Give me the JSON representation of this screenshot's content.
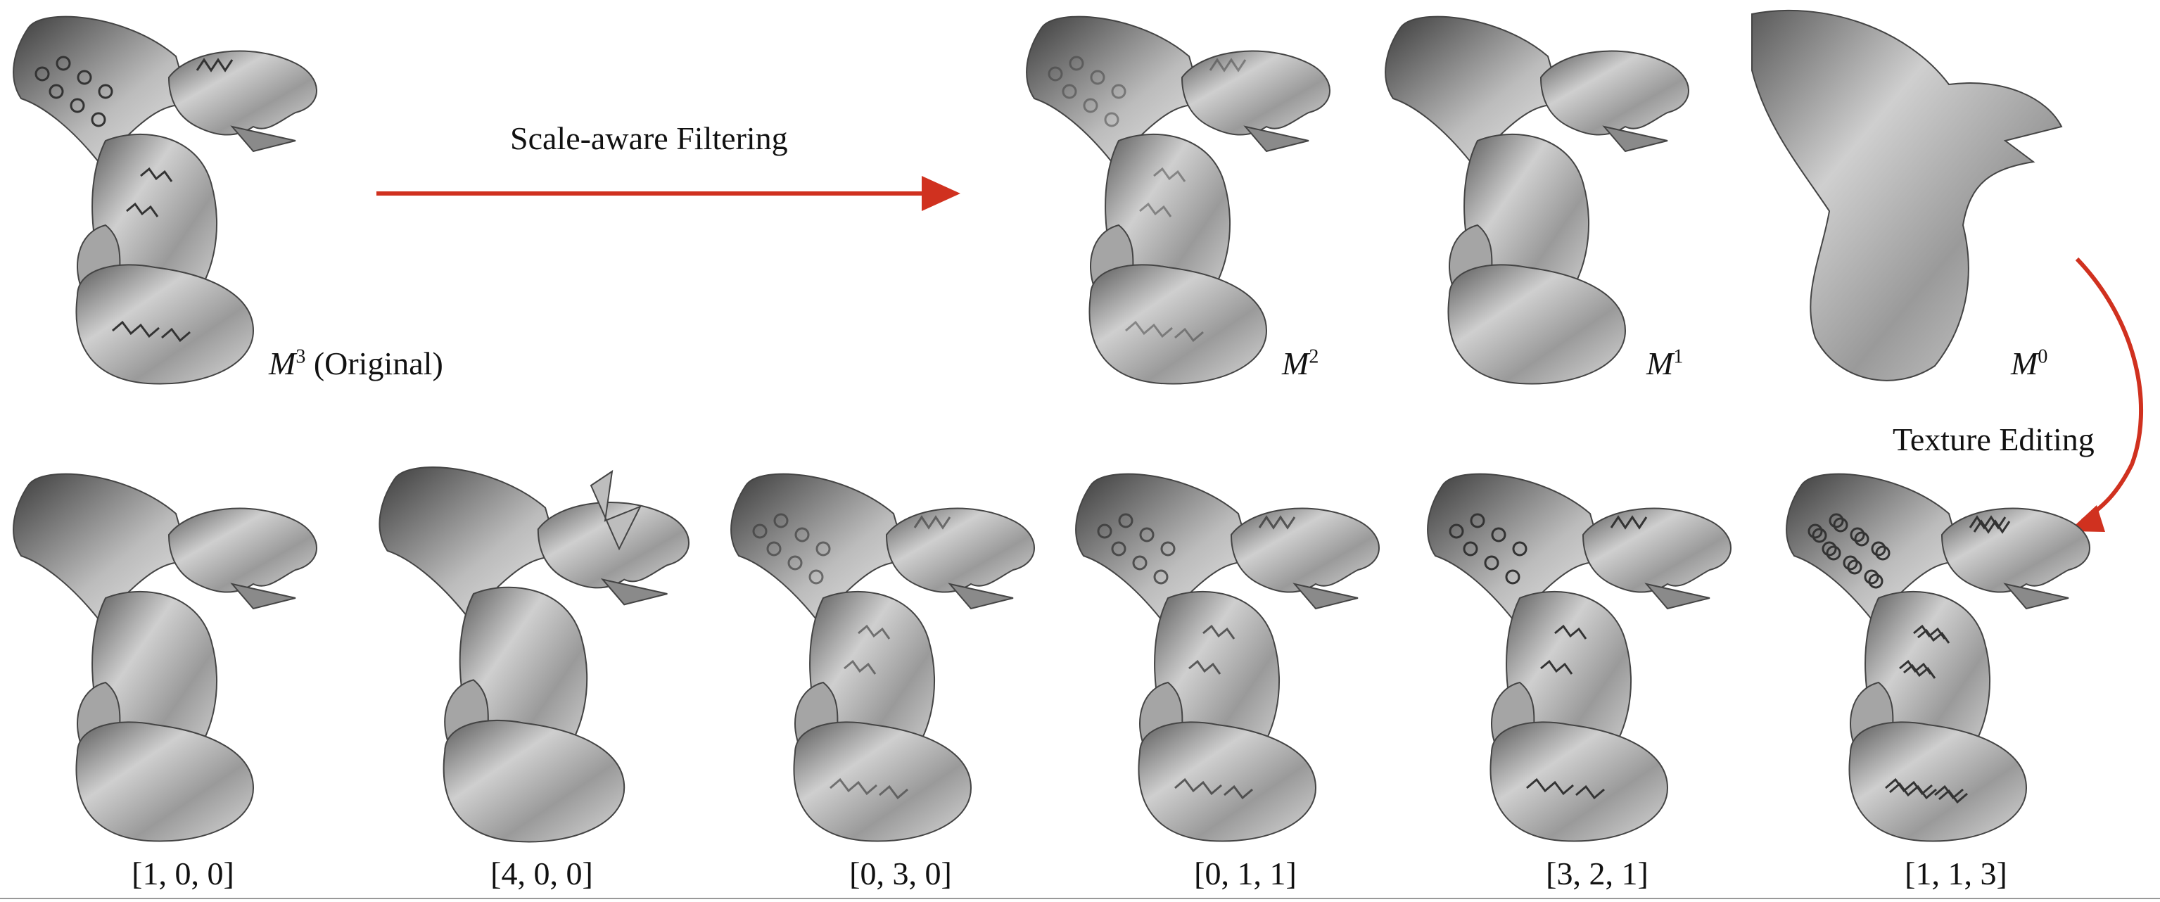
{
  "top_row": [
    {
      "symbol": "M",
      "superscript": "3",
      "suffix": "(Original)",
      "detail": "high"
    },
    {
      "symbol": "M",
      "superscript": "2",
      "suffix": "",
      "detail": "mid"
    },
    {
      "symbol": "M",
      "superscript": "1",
      "suffix": "",
      "detail": "low"
    },
    {
      "symbol": "M",
      "superscript": "0",
      "suffix": "",
      "detail": "base"
    }
  ],
  "arrows": {
    "filtering_label": "Scale-aware Filtering",
    "editing_label": "Texture Editing",
    "color": "#d0311f"
  },
  "bottom_row": [
    {
      "label": "[1, 0, 0]",
      "detail": "low"
    },
    {
      "label": "[4, 0, 0]",
      "detail": "exaggerated"
    },
    {
      "label": "[0, 3, 0]",
      "detail": "mid"
    },
    {
      "label": "[0, 1, 1]",
      "detail": "mid"
    },
    {
      "label": "[3, 2, 1]",
      "detail": "high"
    },
    {
      "label": "[1, 1, 3]",
      "detail": "high"
    }
  ]
}
